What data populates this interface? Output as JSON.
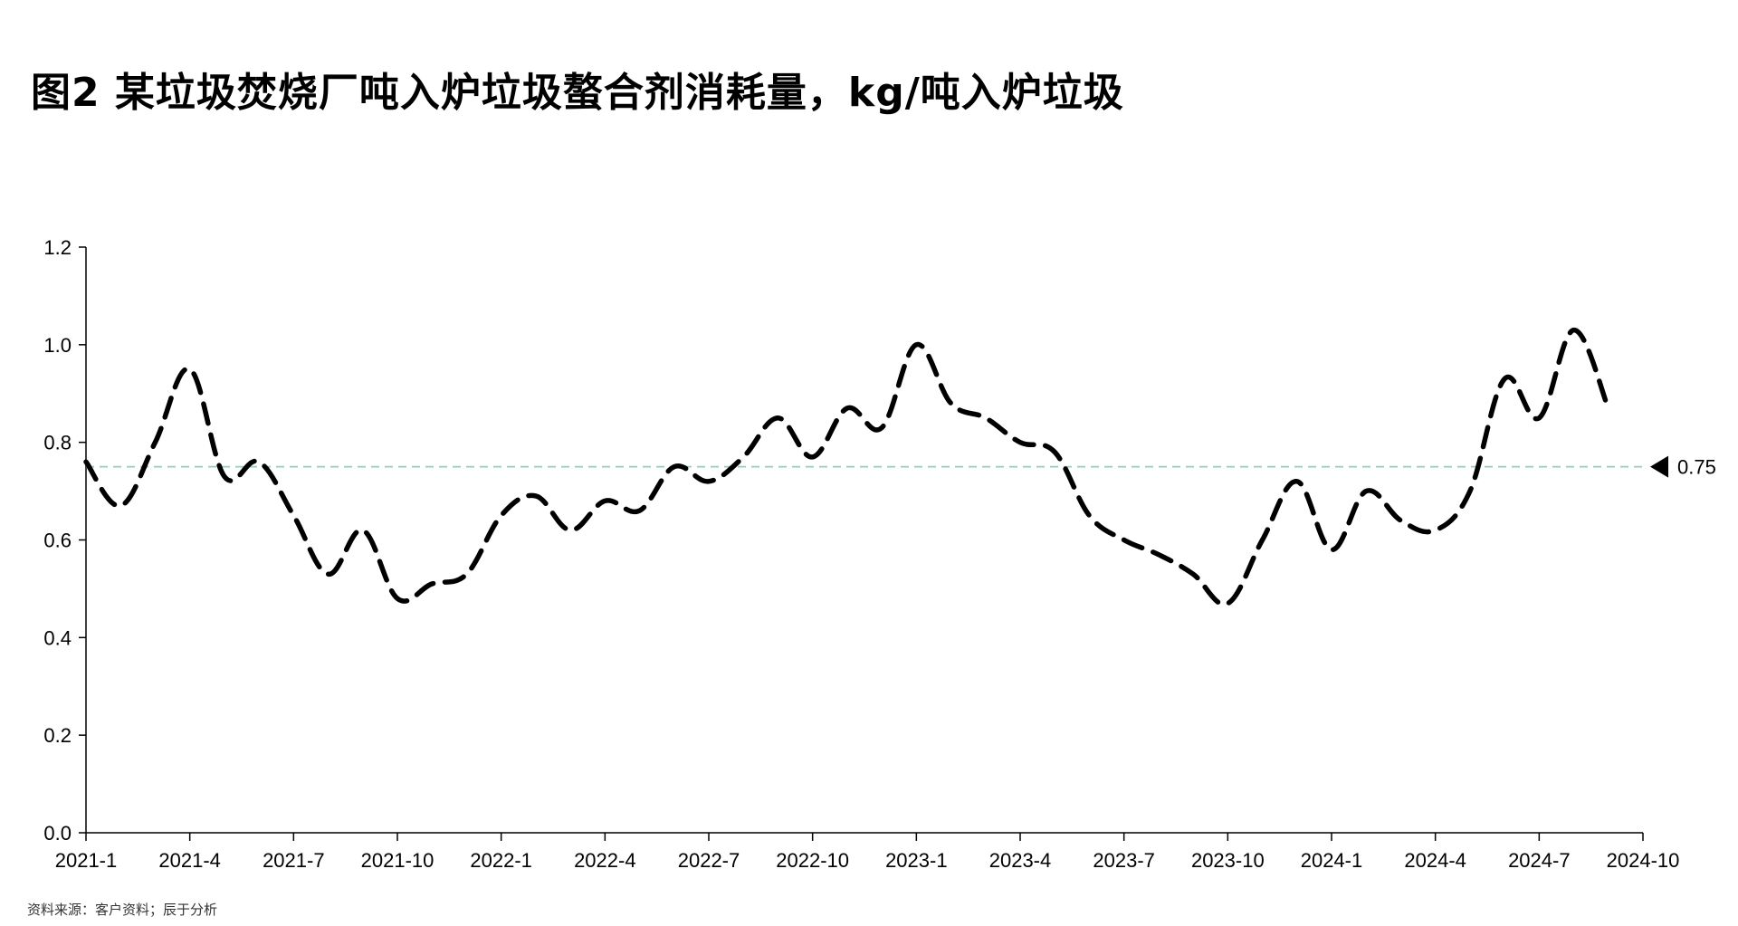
{
  "title": "图2 某垃圾焚烧厂吨入炉垃圾螯合剂消耗量，kg/吨入炉垃圾",
  "source": "资料来源：客户资料；辰于分析",
  "colors": {
    "line": "#000000",
    "reference_line": "#8fcfc0",
    "axis": "#000000"
  },
  "chart_data": {
    "type": "line",
    "title": "图2 某垃圾焚烧厂吨入炉垃圾螯合剂消耗量，kg/吨入炉垃圾",
    "xlabel": "",
    "ylabel": "",
    "x_tick_labels": [
      "2021-1",
      "2021-4",
      "2021-7",
      "2021-10",
      "2022-1",
      "2022-4",
      "2022-7",
      "2022-10",
      "2023-1",
      "2023-4",
      "2023-7",
      "2023-10",
      "2024-1",
      "2024-4",
      "2024-7",
      "2024-10"
    ],
    "y_tick_labels": [
      "0.0",
      "0.2",
      "0.4",
      "0.6",
      "0.8",
      "1.0",
      "1.2"
    ],
    "ylim": [
      0,
      1.2
    ],
    "x_range": [
      "2021-1",
      "2024-10"
    ],
    "grid": false,
    "line_style": "dashed",
    "reference_line": {
      "value": 0.75,
      "label": "0.75",
      "marker": "triangle-left"
    },
    "series": [
      {
        "x": [
          "2021-1",
          "2021-2",
          "2021-3",
          "2021-4",
          "2021-5",
          "2021-6",
          "2021-7",
          "2021-8",
          "2021-9",
          "2021-10",
          "2021-11",
          "2021-12",
          "2022-1",
          "2022-2",
          "2022-3",
          "2022-4",
          "2022-5",
          "2022-6",
          "2022-7",
          "2022-8",
          "2022-9",
          "2022-10",
          "2022-11",
          "2022-12",
          "2023-1",
          "2023-2",
          "2023-3",
          "2023-4",
          "2023-5",
          "2023-6",
          "2023-7",
          "2023-8",
          "2023-9",
          "2023-10",
          "2023-11",
          "2023-12",
          "2024-1",
          "2024-2",
          "2024-3",
          "2024-4",
          "2024-5",
          "2024-6",
          "2024-7",
          "2024-8",
          "2024-9"
        ],
        "values": [
          0.76,
          0.67,
          0.8,
          0.95,
          0.73,
          0.76,
          0.65,
          0.53,
          0.62,
          0.48,
          0.51,
          0.53,
          0.65,
          0.69,
          0.62,
          0.68,
          0.66,
          0.75,
          0.72,
          0.77,
          0.85,
          0.77,
          0.87,
          0.83,
          1.0,
          0.88,
          0.85,
          0.8,
          0.78,
          0.65,
          0.6,
          0.57,
          0.53,
          0.47,
          0.6,
          0.72,
          0.58,
          0.7,
          0.64,
          0.62,
          0.7,
          0.93,
          0.85,
          1.03,
          0.87
        ]
      }
    ]
  }
}
